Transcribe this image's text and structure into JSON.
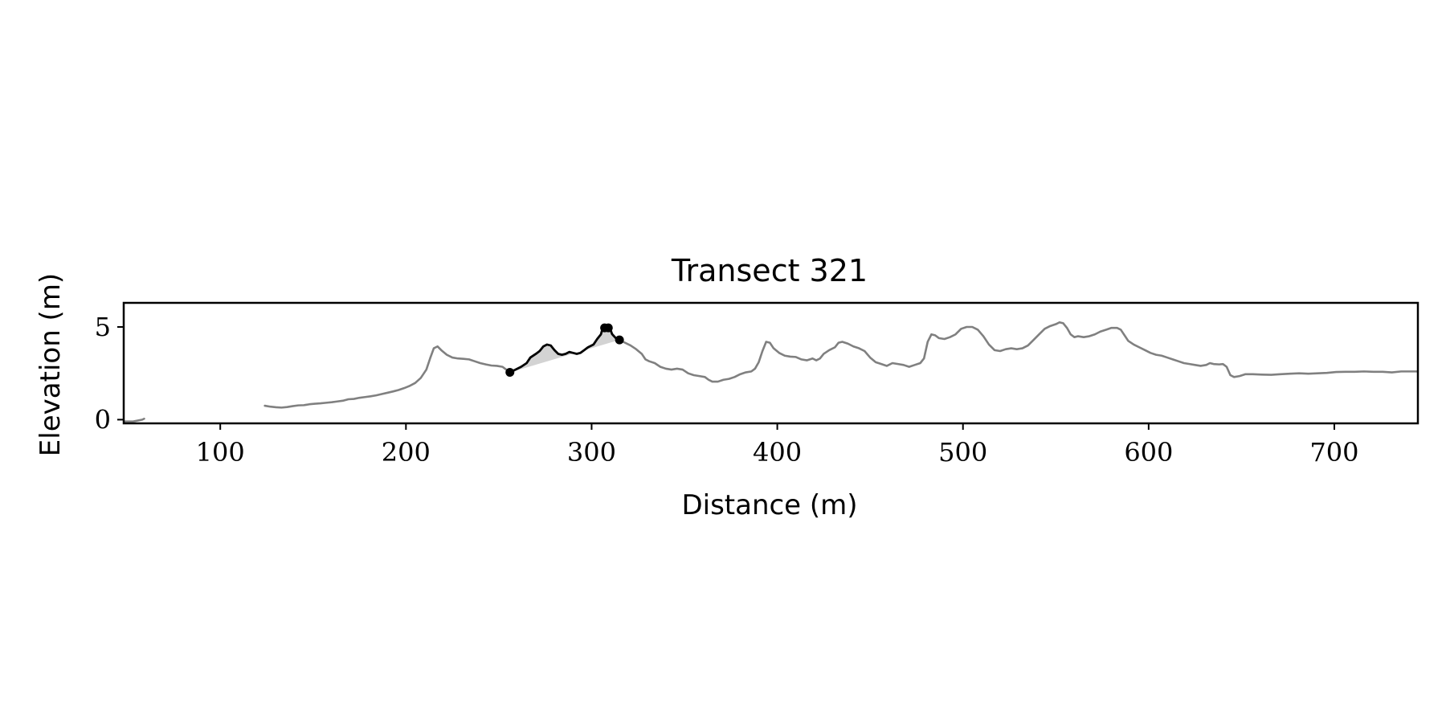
{
  "chart_data": {
    "type": "line",
    "title": "Transect 321",
    "xlabel": "Distance (m)",
    "ylabel": "Elevation (m)",
    "xlim": [
      48,
      745
    ],
    "ylim": [
      -0.2,
      6.3
    ],
    "x_ticks": [
      100,
      200,
      300,
      400,
      500,
      600,
      700
    ],
    "y_ticks": [
      0,
      5
    ],
    "grid": false,
    "legend": "none",
    "colors": {
      "profile": "#808080",
      "highlight": "#000000",
      "fill": "#d3d3d3",
      "axes": "#000000"
    },
    "series": [
      {
        "role": "profile",
        "style": "gray-line",
        "points": [
          [
            48,
            -0.1
          ],
          [
            53,
            -0.1
          ],
          [
            58,
            0.0
          ],
          [
            59,
            0.05
          ]
        ]
      },
      {
        "role": "profile",
        "style": "gray-line",
        "points": [
          [
            124,
            0.75
          ],
          [
            127,
            0.7
          ],
          [
            130,
            0.67
          ],
          [
            133,
            0.65
          ],
          [
            136,
            0.68
          ],
          [
            139,
            0.73
          ],
          [
            142,
            0.77
          ],
          [
            145,
            0.78
          ],
          [
            148,
            0.83
          ],
          [
            151,
            0.86
          ],
          [
            154,
            0.88
          ],
          [
            157,
            0.91
          ],
          [
            160,
            0.94
          ],
          [
            163,
            0.98
          ],
          [
            166,
            1.02
          ],
          [
            169,
            1.1
          ],
          [
            172,
            1.12
          ],
          [
            175,
            1.18
          ],
          [
            178,
            1.22
          ],
          [
            181,
            1.26
          ],
          [
            184,
            1.31
          ],
          [
            187,
            1.38
          ],
          [
            190,
            1.45
          ],
          [
            193,
            1.52
          ],
          [
            196,
            1.6
          ],
          [
            199,
            1.7
          ],
          [
            202,
            1.82
          ],
          [
            205,
            1.98
          ],
          [
            208,
            2.25
          ],
          [
            211,
            2.7
          ],
          [
            213,
            3.3
          ],
          [
            215,
            3.85
          ],
          [
            217,
            3.95
          ],
          [
            219,
            3.75
          ],
          [
            222,
            3.5
          ],
          [
            225,
            3.35
          ],
          [
            228,
            3.3
          ],
          [
            231,
            3.28
          ],
          [
            234,
            3.25
          ],
          [
            237,
            3.15
          ],
          [
            240,
            3.05
          ],
          [
            243,
            2.98
          ],
          [
            246,
            2.92
          ],
          [
            249,
            2.9
          ],
          [
            252,
            2.85
          ],
          [
            254,
            2.7
          ],
          [
            256,
            2.55
          ]
        ]
      },
      {
        "role": "highlight",
        "style": "black-line",
        "points": [
          [
            256,
            2.55
          ],
          [
            259,
            2.7
          ],
          [
            262,
            2.85
          ],
          [
            265,
            3.05
          ],
          [
            267,
            3.35
          ],
          [
            270,
            3.55
          ],
          [
            272,
            3.7
          ],
          [
            274,
            3.95
          ],
          [
            276,
            4.05
          ],
          [
            278,
            4.0
          ],
          [
            280,
            3.75
          ],
          [
            282,
            3.55
          ],
          [
            284,
            3.5
          ],
          [
            286,
            3.55
          ],
          [
            288,
            3.65
          ],
          [
            290,
            3.6
          ],
          [
            292,
            3.55
          ],
          [
            294,
            3.6
          ],
          [
            296,
            3.75
          ],
          [
            298,
            3.9
          ],
          [
            301,
            4.05
          ],
          [
            303,
            4.35
          ],
          [
            305,
            4.6
          ],
          [
            306,
            4.95
          ],
          [
            308,
            4.95
          ],
          [
            310,
            4.9
          ],
          [
            311,
            4.62
          ],
          [
            313,
            4.4
          ],
          [
            315,
            4.3
          ]
        ]
      },
      {
        "role": "profile",
        "style": "gray-line",
        "points": [
          [
            315,
            4.3
          ],
          [
            318,
            4.15
          ],
          [
            321,
            4.0
          ],
          [
            324,
            3.8
          ],
          [
            327,
            3.55
          ],
          [
            329,
            3.25
          ],
          [
            331,
            3.15
          ],
          [
            334,
            3.05
          ],
          [
            337,
            2.85
          ],
          [
            340,
            2.75
          ],
          [
            343,
            2.7
          ],
          [
            346,
            2.75
          ],
          [
            349,
            2.7
          ],
          [
            352,
            2.5
          ],
          [
            355,
            2.4
          ],
          [
            358,
            2.35
          ],
          [
            361,
            2.3
          ],
          [
            363,
            2.15
          ],
          [
            365,
            2.05
          ],
          [
            368,
            2.05
          ],
          [
            371,
            2.15
          ],
          [
            374,
            2.2
          ],
          [
            377,
            2.3
          ],
          [
            380,
            2.45
          ],
          [
            383,
            2.55
          ],
          [
            386,
            2.6
          ],
          [
            388,
            2.75
          ],
          [
            390,
            3.1
          ],
          [
            392,
            3.7
          ],
          [
            394,
            4.2
          ],
          [
            396,
            4.15
          ],
          [
            398,
            3.85
          ],
          [
            401,
            3.6
          ],
          [
            404,
            3.45
          ],
          [
            407,
            3.4
          ],
          [
            410,
            3.38
          ],
          [
            413,
            3.25
          ],
          [
            416,
            3.2
          ],
          [
            419,
            3.3
          ],
          [
            421,
            3.2
          ],
          [
            423,
            3.3
          ],
          [
            425,
            3.55
          ],
          [
            428,
            3.75
          ],
          [
            431,
            3.9
          ],
          [
            433,
            4.15
          ],
          [
            435,
            4.2
          ],
          [
            438,
            4.1
          ],
          [
            441,
            3.95
          ],
          [
            444,
            3.85
          ],
          [
            447,
            3.7
          ],
          [
            450,
            3.35
          ],
          [
            453,
            3.1
          ],
          [
            456,
            3.0
          ],
          [
            459,
            2.9
          ],
          [
            462,
            3.05
          ],
          [
            465,
            3.0
          ],
          [
            468,
            2.95
          ],
          [
            471,
            2.85
          ],
          [
            474,
            2.95
          ],
          [
            477,
            3.05
          ],
          [
            479,
            3.3
          ],
          [
            481,
            4.2
          ],
          [
            483,
            4.6
          ],
          [
            485,
            4.55
          ],
          [
            487,
            4.4
          ],
          [
            490,
            4.35
          ],
          [
            493,
            4.45
          ],
          [
            496,
            4.6
          ],
          [
            499,
            4.9
          ],
          [
            502,
            5.0
          ],
          [
            505,
            5.0
          ],
          [
            508,
            4.85
          ],
          [
            511,
            4.5
          ],
          [
            514,
            4.05
          ],
          [
            517,
            3.75
          ],
          [
            520,
            3.7
          ],
          [
            523,
            3.8
          ],
          [
            526,
            3.85
          ],
          [
            529,
            3.8
          ],
          [
            532,
            3.85
          ],
          [
            535,
            4.0
          ],
          [
            538,
            4.3
          ],
          [
            541,
            4.6
          ],
          [
            544,
            4.9
          ],
          [
            547,
            5.05
          ],
          [
            550,
            5.15
          ],
          [
            552,
            5.25
          ],
          [
            554,
            5.2
          ],
          [
            556,
            4.95
          ],
          [
            558,
            4.6
          ],
          [
            560,
            4.45
          ],
          [
            562,
            4.5
          ],
          [
            565,
            4.45
          ],
          [
            568,
            4.5
          ],
          [
            571,
            4.6
          ],
          [
            574,
            4.75
          ],
          [
            577,
            4.85
          ],
          [
            580,
            4.95
          ],
          [
            583,
            4.95
          ],
          [
            585,
            4.85
          ],
          [
            587,
            4.55
          ],
          [
            589,
            4.25
          ],
          [
            592,
            4.05
          ],
          [
            595,
            3.9
          ],
          [
            598,
            3.75
          ],
          [
            601,
            3.6
          ],
          [
            604,
            3.5
          ],
          [
            607,
            3.45
          ],
          [
            610,
            3.35
          ],
          [
            613,
            3.25
          ],
          [
            616,
            3.15
          ],
          [
            619,
            3.05
          ],
          [
            622,
            3.0
          ],
          [
            625,
            2.95
          ],
          [
            628,
            2.9
          ],
          [
            631,
            2.95
          ],
          [
            633,
            3.05
          ],
          [
            635,
            3.0
          ],
          [
            638,
            2.98
          ],
          [
            640,
            3.0
          ],
          [
            642,
            2.85
          ],
          [
            644,
            2.4
          ],
          [
            646,
            2.3
          ],
          [
            649,
            2.35
          ],
          [
            652,
            2.45
          ],
          [
            656,
            2.45
          ],
          [
            661,
            2.43
          ],
          [
            666,
            2.42
          ],
          [
            671,
            2.45
          ],
          [
            676,
            2.48
          ],
          [
            681,
            2.5
          ],
          [
            686,
            2.48
          ],
          [
            691,
            2.5
          ],
          [
            696,
            2.52
          ],
          [
            701,
            2.57
          ],
          [
            706,
            2.58
          ],
          [
            711,
            2.58
          ],
          [
            716,
            2.6
          ],
          [
            721,
            2.58
          ],
          [
            726,
            2.58
          ],
          [
            731,
            2.55
          ],
          [
            736,
            2.6
          ],
          [
            741,
            2.6
          ],
          [
            745,
            2.6
          ]
        ]
      }
    ],
    "markers": [
      [
        256,
        2.55
      ],
      [
        307,
        4.95
      ],
      [
        309,
        4.95
      ],
      [
        315,
        4.3
      ]
    ],
    "fill_baseline": [
      [
        256,
        2.55
      ],
      [
        315,
        4.3
      ]
    ]
  }
}
